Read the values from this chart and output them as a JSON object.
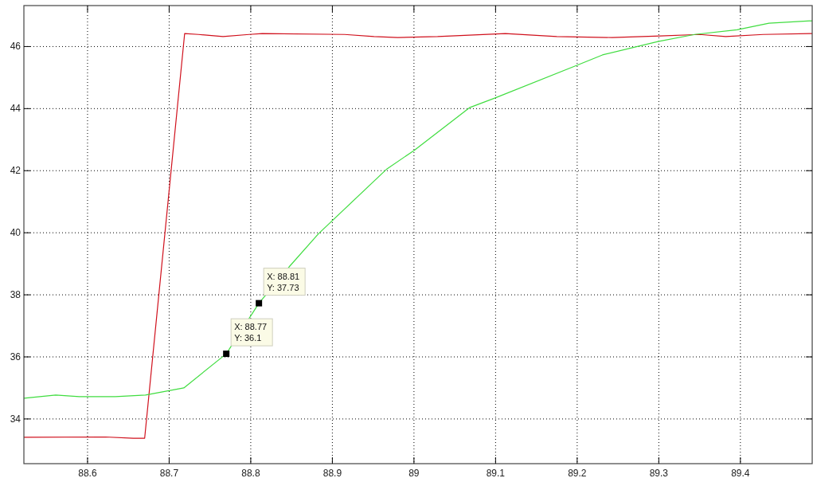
{
  "chart_data": {
    "type": "line",
    "xlim": [
      88.522,
      89.488
    ],
    "ylim": [
      32.56,
      47.32
    ],
    "xticks": [
      88.6,
      88.7,
      88.8,
      88.9,
      89,
      89.1,
      89.2,
      89.3,
      89.4
    ],
    "yticks": [
      34,
      36,
      38,
      40,
      42,
      44,
      46
    ],
    "grid": true,
    "line_style": "solid",
    "series": [
      {
        "color": "#d0101c",
        "x": [
          88.522,
          88.622,
          88.656,
          88.67,
          88.719,
          88.736,
          88.766,
          88.798,
          88.814,
          88.915,
          88.951,
          88.98,
          89.029,
          89.112,
          89.175,
          89.243,
          89.302,
          89.35,
          89.382,
          89.428,
          89.488
        ],
        "values": [
          33.41,
          33.42,
          33.38,
          33.38,
          46.42,
          46.39,
          46.32,
          46.39,
          46.42,
          46.39,
          46.32,
          46.29,
          46.32,
          46.42,
          46.32,
          46.29,
          46.34,
          46.39,
          46.32,
          46.39,
          46.42
        ]
      },
      {
        "color": "#40dd40",
        "x": [
          88.522,
          88.561,
          88.59,
          88.634,
          88.671,
          88.718,
          88.77,
          88.81,
          88.847,
          88.883,
          88.967,
          89.0,
          89.068,
          89.099,
          89.199,
          89.231,
          89.299,
          89.344,
          89.396,
          89.435,
          89.488
        ],
        "values": [
          34.67,
          34.77,
          34.72,
          34.72,
          34.77,
          35.0,
          36.1,
          37.73,
          38.9,
          39.97,
          42.06,
          42.65,
          44.03,
          44.34,
          45.39,
          45.73,
          46.16,
          46.39,
          46.54,
          46.75,
          46.83
        ]
      }
    ],
    "annotations": [
      {
        "text": "X: 88.77\nY: 36.1",
        "x": 88.77,
        "y": 36.1
      },
      {
        "text": "X: 88.81\nY: 37.73",
        "x": 88.81,
        "y": 37.73
      }
    ]
  }
}
